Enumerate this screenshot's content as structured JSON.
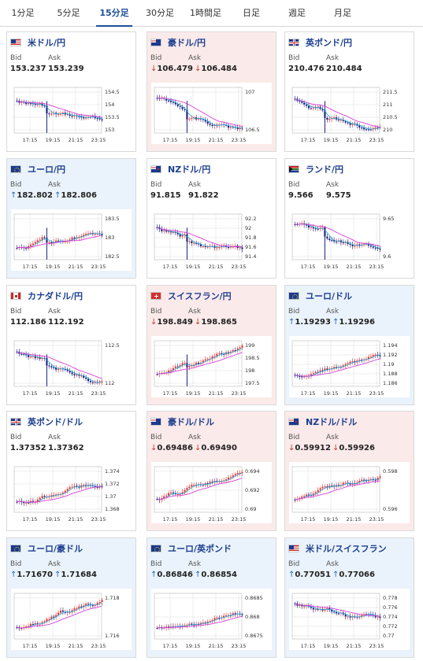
{
  "tabs": [
    "1分足",
    "5分足",
    "15分足",
    "30分足",
    "1時間足",
    "日足",
    "週足",
    "月足"
  ],
  "active_tab": 2,
  "labels": {
    "bid": "Bid",
    "ask": "Ask"
  },
  "x_ticks": [
    "17:15",
    "19:15",
    "21:15",
    "23:15"
  ],
  "cards": [
    {
      "title": "米ドル/円",
      "flag": "us-flag",
      "dir": "flat",
      "bid": "153.237",
      "ask": "153.239",
      "yticks": [
        "154.5",
        "154",
        "153.5",
        "153"
      ]
    },
    {
      "title": "豪ドル/円",
      "flag": "au-flag",
      "dir": "down",
      "bid": "106.479",
      "ask": "106.484",
      "yticks": [
        "107",
        "106.5"
      ]
    },
    {
      "title": "英ポンド/円",
      "flag": "gb-flag",
      "dir": "flat",
      "bid": "210.476",
      "ask": "210.484",
      "yticks": [
        "211.5",
        "211",
        "210.5",
        "210"
      ]
    },
    {
      "title": "ユーロ/円",
      "flag": "eu-flag",
      "dir": "up",
      "bid": "182.802",
      "ask": "182.806",
      "yticks": [
        "183.5",
        "183",
        "182.5"
      ]
    },
    {
      "title": "NZドル/円",
      "flag": "nz-flag",
      "dir": "flat",
      "bid": "91.815",
      "ask": "91.822",
      "yticks": [
        "92.2",
        "92",
        "91.8",
        "91.6",
        "91.4"
      ]
    },
    {
      "title": "ランド/円",
      "flag": "za-flag",
      "dir": "flat",
      "bid": "9.566",
      "ask": "9.575",
      "yticks": [
        "9.65",
        "9.6"
      ]
    },
    {
      "title": "カナダドル/円",
      "flag": "ca-flag",
      "dir": "flat",
      "bid": "112.186",
      "ask": "112.192",
      "yticks": [
        "112.5",
        "112"
      ]
    },
    {
      "title": "スイスフラン/円",
      "flag": "ch-flag",
      "dir": "down",
      "bid": "198.849",
      "ask": "198.865",
      "yticks": [
        "199",
        "198.5",
        "198",
        "197.5"
      ]
    },
    {
      "title": "ユーロ/ドル",
      "flag": "eu-flag",
      "dir": "up",
      "bid": "1.19293",
      "ask": "1.19296",
      "yticks": [
        "1.194",
        "1.192",
        "1.19",
        "1.188",
        "1.186"
      ]
    },
    {
      "title": "英ポンド/ドル",
      "flag": "gb-flag",
      "dir": "flat",
      "bid": "1.37352",
      "ask": "1.37362",
      "yticks": [
        "1.374",
        "1.372",
        "1.37",
        "1.368"
      ]
    },
    {
      "title": "豪ドル/ドル",
      "flag": "au-flag",
      "dir": "down",
      "bid": "0.69486",
      "ask": "0.69490",
      "yticks": [
        "0.694",
        "0.692",
        "0.69"
      ]
    },
    {
      "title": "NZドル/ドル",
      "flag": "nz-flag",
      "dir": "down",
      "bid": "0.59912",
      "ask": "0.59926",
      "yticks": [
        "0.598",
        "0.596"
      ]
    },
    {
      "title": "ユーロ/豪ドル",
      "flag": "eu-flag",
      "dir": "up",
      "bid": "1.71670",
      "ask": "1.71684",
      "yticks": [
        "1.718",
        "1.716"
      ]
    },
    {
      "title": "ユーロ/英ポンド",
      "flag": "eu-flag",
      "dir": "up",
      "bid": "0.86846",
      "ask": "0.86854",
      "yticks": [
        "0.8685",
        "0.868",
        "0.8675"
      ]
    },
    {
      "title": "米ドル/スイスフラン",
      "flag": "us-flag",
      "dir": "up",
      "bid": "0.77051",
      "ask": "0.77066",
      "yticks": [
        "0.778",
        "0.776",
        "0.774",
        "0.772",
        "0.77"
      ]
    }
  ],
  "colors": {
    "up": "#1f66c0",
    "down": "#c0392b",
    "candle_up": "#e53935",
    "candle_down": "#1a237e",
    "ma_long": "#d63fd6",
    "ma_short": "#29a7d6"
  }
}
